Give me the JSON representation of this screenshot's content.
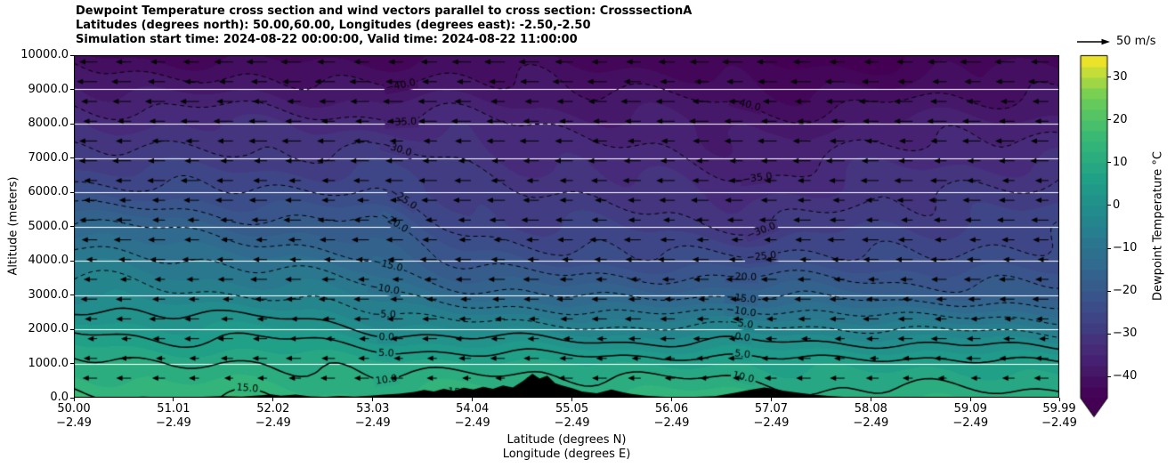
{
  "header": {
    "line1": "Dewpoint Temperature cross section and wind vectors parallel to cross section: CrosssectionA",
    "line2": "Latitudes (degrees north): 50.00,60.00, Longitudes (degrees east): -2.50,-2.50",
    "line3": "Simulation start time: 2024-08-22 00:00:00, Valid time: 2024-08-22 11:00:00"
  },
  "axes": {
    "ylabel": "Altitude (meters)",
    "xlabel_line1": "Latitude (degrees N)",
    "xlabel_line2": "Longitude (degrees E)",
    "y_ticks": [
      "0.0",
      "1000.0",
      "2000.0",
      "3000.0",
      "4000.0",
      "5000.0",
      "6000.0",
      "7000.0",
      "8000.0",
      "9000.0",
      "10000.0"
    ],
    "x_ticks": [
      {
        "lat": "50.00",
        "lon": "−2.49"
      },
      {
        "lat": "51.01",
        "lon": "−2.49"
      },
      {
        "lat": "52.02",
        "lon": "−2.49"
      },
      {
        "lat": "53.03",
        "lon": "−2.49"
      },
      {
        "lat": "54.04",
        "lon": "−2.49"
      },
      {
        "lat": "55.05",
        "lon": "−2.49"
      },
      {
        "lat": "56.06",
        "lon": "−2.49"
      },
      {
        "lat": "57.07",
        "lon": "−2.49"
      },
      {
        "lat": "58.08",
        "lon": "−2.49"
      },
      {
        "lat": "59.09",
        "lon": "−2.49"
      },
      {
        "lat": "59.99",
        "lon": "−2.49"
      }
    ]
  },
  "colorbar": {
    "label": "Dewpoint Temperature °C",
    "tick_labels": [
      "30",
      "20",
      "10",
      "0",
      "−10",
      "−20",
      "−30",
      "−40"
    ],
    "tick_values": [
      30,
      20,
      10,
      0,
      -10,
      -20,
      -30,
      -40
    ],
    "vmin": -45,
    "vmax": 35,
    "colormap": "viridis",
    "extend": "min"
  },
  "wind_key": {
    "label": "50 m/s",
    "speed_ms": 50
  },
  "chart_data": {
    "type": "heatmap",
    "title": "Dewpoint Temperature cross section and wind vectors parallel to cross section: CrosssectionA",
    "x_range_latitude": [
      50.0,
      59.99
    ],
    "y_range_altitude_m": [
      0,
      10000
    ],
    "grid": "horizontal white gridlines every 1000 m",
    "latitudes": [
      50,
      51,
      52,
      53,
      54,
      55,
      56,
      57,
      58,
      59,
      60
    ],
    "altitudes": [
      0,
      1000,
      2000,
      3000,
      4000,
      5000,
      6000,
      7000,
      8000,
      9000,
      10000
    ],
    "dewpoint_grid": [
      [
        16,
        15,
        15,
        14,
        14,
        13,
        13,
        13,
        12,
        12,
        12
      ],
      [
        11,
        10,
        10,
        9,
        8,
        8,
        7,
        7,
        7,
        6,
        6
      ],
      [
        4,
        3,
        2,
        0,
        -2,
        -3,
        -4,
        -5,
        -5,
        -6,
        -6
      ],
      [
        -4,
        -5,
        -6,
        -8,
        -12,
        -15,
        -16,
        -17,
        -17,
        -18,
        -18
      ],
      [
        -8,
        -10,
        -12,
        -14,
        -20,
        -24,
        -24,
        -25,
        -24,
        -24,
        -23
      ],
      [
        -14,
        -16,
        -18,
        -20,
        -26,
        -28,
        -28,
        -30,
        -28,
        -27,
        -26
      ],
      [
        -22,
        -24,
        -25,
        -26,
        -29,
        -30,
        -31,
        -33,
        -32,
        -30,
        -30
      ],
      [
        -28,
        -29,
        -30,
        -30,
        -31,
        -32,
        -34,
        -36,
        -35,
        -34,
        -33
      ],
      [
        -32,
        -33,
        -33,
        -34,
        -34,
        -35,
        -37,
        -39,
        -38,
        -37,
        -36
      ],
      [
        -37,
        -38,
        -38,
        -39,
        -39,
        -40,
        -41,
        -42,
        -42,
        -41,
        -40
      ],
      [
        -42,
        -42,
        -43,
        -43,
        -43,
        -44,
        -44,
        -45,
        -45,
        -44,
        -44
      ]
    ],
    "contour_levels": [
      -40,
      -35,
      -30,
      -25,
      -20,
      -15,
      -10,
      -5,
      0,
      5,
      10,
      15
    ],
    "contour_style": "negative levels dashed, zero and positive levels solid, black",
    "wind": {
      "direction": "toward decreasing latitude (arrows point left)",
      "reference_speed_ms": 50
    },
    "terrain_profile": [
      [
        50.0,
        20
      ],
      [
        50.2,
        5
      ],
      [
        50.4,
        25
      ],
      [
        50.55,
        10
      ],
      [
        50.7,
        30
      ],
      [
        50.9,
        15
      ],
      [
        51.1,
        5
      ],
      [
        51.3,
        25
      ],
      [
        51.5,
        45
      ],
      [
        51.7,
        30
      ],
      [
        51.9,
        70
      ],
      [
        52.0,
        100
      ],
      [
        52.1,
        60
      ],
      [
        52.25,
        90
      ],
      [
        52.4,
        40
      ],
      [
        52.55,
        25
      ],
      [
        52.7,
        55
      ],
      [
        52.85,
        35
      ],
      [
        53.0,
        60
      ],
      [
        53.15,
        90
      ],
      [
        53.3,
        120
      ],
      [
        53.45,
        170
      ],
      [
        53.55,
        230
      ],
      [
        53.65,
        180
      ],
      [
        53.75,
        260
      ],
      [
        53.85,
        200
      ],
      [
        53.95,
        290
      ],
      [
        54.05,
        240
      ],
      [
        54.15,
        320
      ],
      [
        54.25,
        260
      ],
      [
        54.35,
        360
      ],
      [
        54.45,
        300
      ],
      [
        54.55,
        480
      ],
      [
        54.65,
        700
      ],
      [
        54.72,
        560
      ],
      [
        54.8,
        640
      ],
      [
        54.88,
        420
      ],
      [
        54.95,
        360
      ],
      [
        55.05,
        280
      ],
      [
        55.15,
        180
      ],
      [
        55.3,
        130
      ],
      [
        55.45,
        240
      ],
      [
        55.55,
        170
      ],
      [
        55.65,
        110
      ],
      [
        55.8,
        60
      ],
      [
        55.95,
        30
      ],
      [
        56.1,
        15
      ],
      [
        56.3,
        25
      ],
      [
        56.5,
        45
      ],
      [
        56.7,
        140
      ],
      [
        56.85,
        230
      ],
      [
        57.0,
        300
      ],
      [
        57.1,
        260
      ],
      [
        57.2,
        200
      ],
      [
        57.35,
        140
      ],
      [
        57.5,
        90
      ],
      [
        57.65,
        50
      ],
      [
        57.8,
        25
      ],
      [
        58.0,
        10
      ],
      [
        58.3,
        5
      ],
      [
        58.7,
        0
      ],
      [
        59.2,
        0
      ],
      [
        59.6,
        0
      ],
      [
        59.99,
        0
      ]
    ]
  }
}
